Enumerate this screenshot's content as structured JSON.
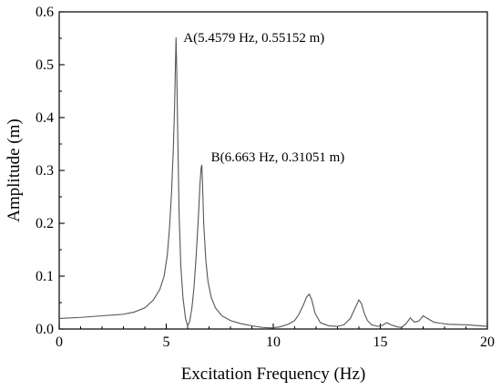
{
  "chart_data": {
    "type": "line",
    "title": "",
    "xlabel": "Excitation Frequency (Hz)",
    "ylabel": "Amplitude (m)",
    "xlim": [
      0,
      20
    ],
    "ylim": [
      0,
      0.6
    ],
    "x_ticks": [
      0,
      5,
      10,
      15,
      20
    ],
    "x_tick_labels": [
      "0",
      "5",
      "10",
      "15",
      "20"
    ],
    "y_ticks": [
      0.0,
      0.1,
      0.2,
      0.3,
      0.4,
      0.5,
      0.6
    ],
    "y_tick_labels": [
      "0.0",
      "0.1",
      "0.2",
      "0.3",
      "0.4",
      "0.5",
      "0.6"
    ],
    "grid": false,
    "legend": "none",
    "line_color": "#555555",
    "series": [
      {
        "x": [
          0.0,
          1.0,
          2.0,
          3.0,
          3.5,
          4.0,
          4.4,
          4.7,
          4.9,
          5.05,
          5.15,
          5.25,
          5.33,
          5.39,
          5.43,
          5.4579,
          5.49,
          5.54,
          5.6,
          5.68,
          5.78,
          5.9,
          6.0,
          6.1,
          6.2,
          6.3,
          6.4,
          6.5,
          6.57,
          6.63,
          6.663,
          6.7,
          6.75,
          6.85,
          6.95,
          7.1,
          7.3,
          7.6,
          8.0,
          8.5,
          9.0,
          9.5,
          9.9,
          10.3,
          10.7,
          11.0,
          11.2,
          11.4,
          11.55,
          11.68,
          11.8,
          11.95,
          12.2,
          12.6,
          13.0,
          13.3,
          13.6,
          13.85,
          14.0,
          14.12,
          14.25,
          14.4,
          14.6,
          14.9,
          15.1,
          15.3,
          15.5,
          15.8,
          16.0,
          16.2,
          16.4,
          16.6,
          16.8,
          17.0,
          17.2,
          17.5,
          17.8,
          18.2,
          19.0,
          20.0
        ],
        "y": [
          0.02,
          0.022,
          0.025,
          0.028,
          0.032,
          0.04,
          0.055,
          0.075,
          0.1,
          0.14,
          0.19,
          0.26,
          0.34,
          0.42,
          0.5,
          0.55152,
          0.49,
          0.36,
          0.22,
          0.12,
          0.06,
          0.02,
          0.006,
          0.015,
          0.04,
          0.08,
          0.14,
          0.21,
          0.27,
          0.305,
          0.31051,
          0.27,
          0.2,
          0.13,
          0.09,
          0.06,
          0.04,
          0.025,
          0.016,
          0.01,
          0.006,
          0.003,
          0.002,
          0.004,
          0.009,
          0.016,
          0.028,
          0.045,
          0.06,
          0.066,
          0.055,
          0.03,
          0.012,
          0.006,
          0.005,
          0.008,
          0.02,
          0.042,
          0.055,
          0.048,
          0.03,
          0.016,
          0.008,
          0.005,
          0.007,
          0.012,
          0.008,
          0.004,
          0.003,
          0.01,
          0.021,
          0.013,
          0.015,
          0.025,
          0.02,
          0.013,
          0.011,
          0.009,
          0.008,
          0.005
        ]
      }
    ],
    "annotations": [
      {
        "id": "A",
        "text": "A(5.4579 Hz, 0.55152 m)",
        "x": 5.4579,
        "y": 0.55152
      },
      {
        "id": "B",
        "text": "B(6.663 Hz, 0.31051 m)",
        "x": 6.663,
        "y": 0.31051
      }
    ]
  }
}
